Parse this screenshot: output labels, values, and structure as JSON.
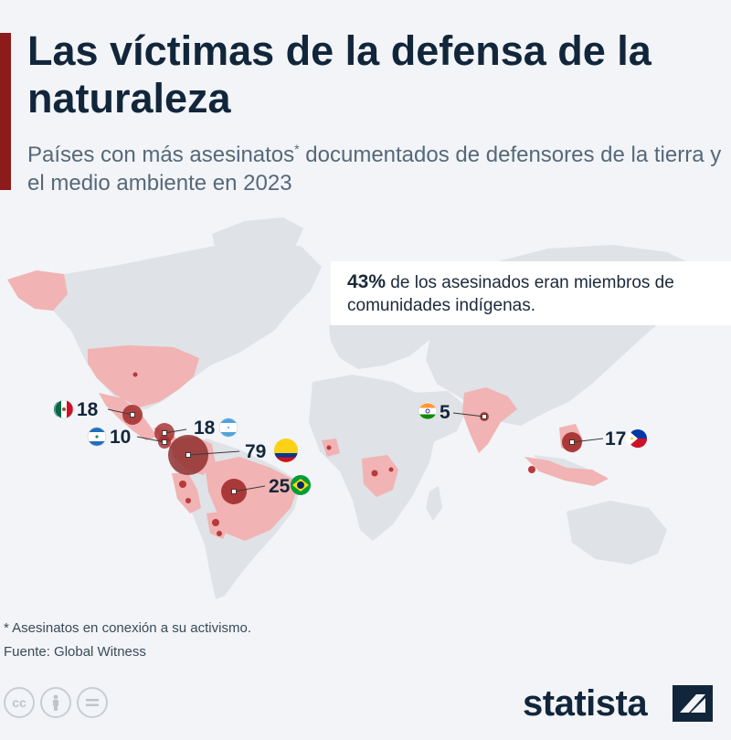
{
  "header": {
    "title": "Las víctimas de la defensa de la naturaleza",
    "subtitle_main": "Países con más asesinatos",
    "subtitle_mark": "*",
    "subtitle_rest": " documentados de defensores de la tierra y el medio ambiente en 2023"
  },
  "callout": {
    "highlight": "43%",
    "text": " de los asesinados eran miembros de comunidades indígenas."
  },
  "markers": [
    {
      "country": "Mexico",
      "flag": "mexico-flag",
      "value": "18"
    },
    {
      "country": "Honduras",
      "flag": "honduras-flag",
      "value": "18"
    },
    {
      "country": "Nicaragua",
      "flag": "nicaragua-flag",
      "value": "10"
    },
    {
      "country": "Colombia",
      "flag": "colombia-flag",
      "value": "79"
    },
    {
      "country": "Brazil",
      "flag": "brazil-flag",
      "value": "25"
    },
    {
      "country": "India",
      "flag": "india-flag",
      "value": "5"
    },
    {
      "country": "Philippines",
      "flag": "philippines-flag",
      "value": "17"
    }
  ],
  "colors": {
    "land": "#dfe2e6",
    "highlight_country": "#f1b3b3",
    "bubble": "#a32a2a",
    "accent": "#8e1b1b",
    "title": "#12263b"
  },
  "footer": {
    "footnote": "* Asesinatos en conexión a su activismo.",
    "source": "Fuente: Global Witness",
    "brand": "statista"
  }
}
